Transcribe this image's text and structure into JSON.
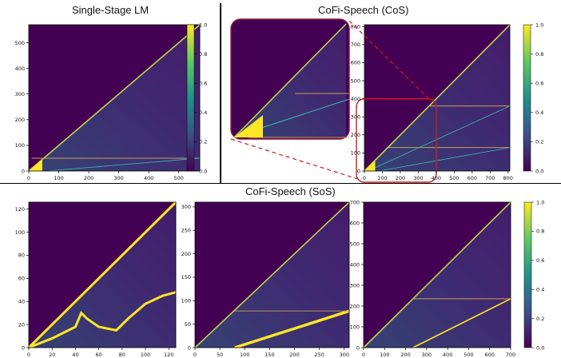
{
  "titles": {
    "top_left": "Single-Stage LM",
    "top_right": "CoFi-Speech (CoS)",
    "bottom": "CoFi-Speech (SoS)"
  },
  "colors": {
    "background": "#440154",
    "highlight": "#fde725",
    "zoom_border": "#d11a1a",
    "stage_line": "#c8a054",
    "diagonal": "#b9d84a"
  },
  "chart_data": [
    {
      "type": "heatmap",
      "title": "Single-Stage LM",
      "xlim": [
        0,
        570
      ],
      "ylim": [
        0,
        570
      ],
      "xticks": [
        0,
        100,
        200,
        300,
        400,
        500
      ],
      "yticks": [
        0,
        100,
        200,
        300,
        400,
        500
      ],
      "colorbar": {
        "range": [
          0.0,
          1.0
        ],
        "ticks": [
          0.0,
          0.2,
          0.4,
          0.6,
          0.8,
          1.0
        ]
      }
    },
    {
      "type": "heatmap",
      "title": "CoFi-Speech (CoS)",
      "xlim": [
        0,
        810
      ],
      "ylim": [
        0,
        810
      ],
      "xticks": [
        0,
        100,
        200,
        300,
        400,
        500,
        600,
        700,
        800
      ],
      "yticks": [
        0,
        100,
        200,
        300,
        400,
        500,
        600,
        700,
        800
      ],
      "colorbar": {
        "range": [
          0.0,
          1.0
        ],
        "ticks": [
          0.0,
          0.2,
          0.4,
          0.6,
          0.8,
          1.0
        ]
      }
    },
    {
      "type": "heatmap",
      "title": "CoFi-Speech (SoS)",
      "xlim": [
        0,
        126
      ],
      "ylim": [
        0,
        126
      ],
      "xticks": [
        0,
        20,
        40,
        60,
        80,
        100,
        120
      ],
      "yticks": [
        0,
        20,
        40,
        60,
        80,
        100,
        120
      ]
    },
    {
      "type": "heatmap",
      "xlim": [
        0,
        310
      ],
      "ylim": [
        0,
        310
      ],
      "xticks": [
        0,
        50,
        100,
        150,
        200,
        250,
        300
      ],
      "yticks": [
        0,
        50,
        100,
        150,
        200,
        250,
        300
      ]
    },
    {
      "type": "heatmap",
      "xlim": [
        0,
        700
      ],
      "ylim": [
        0,
        700
      ],
      "xticks": [
        0,
        100,
        200,
        300,
        400,
        500,
        600,
        700
      ],
      "yticks": [
        0,
        100,
        200,
        300,
        400,
        500,
        600,
        700
      ],
      "colorbar": {
        "range": [
          0.0,
          1.0
        ],
        "ticks": [
          0.0,
          0.2,
          0.4,
          0.6,
          0.8,
          1.0
        ]
      }
    }
  ]
}
